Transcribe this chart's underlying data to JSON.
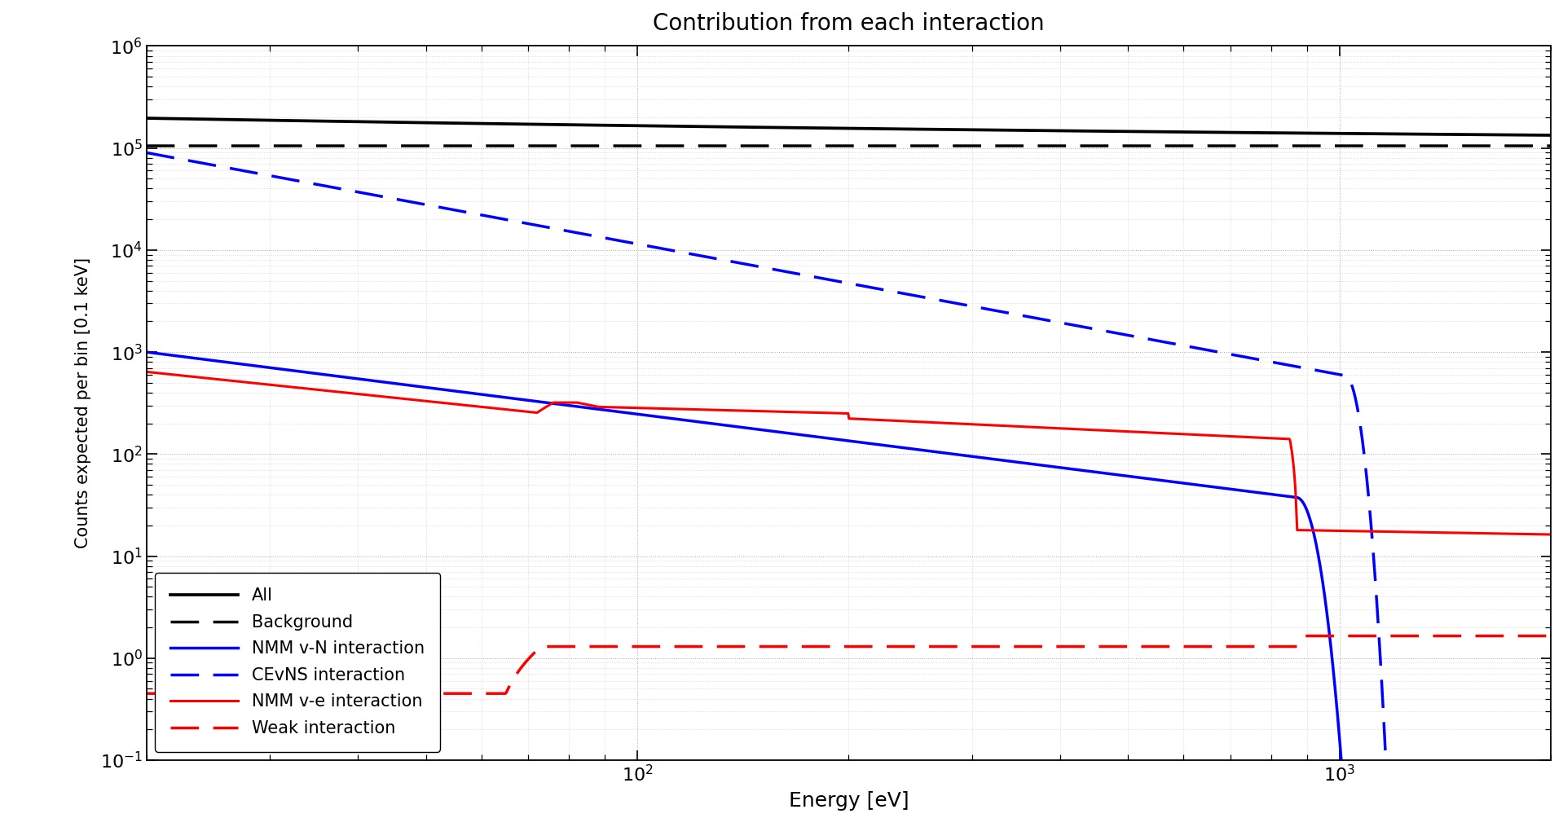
{
  "title": "Contribution from each interaction",
  "xlabel": "Energy [eV]",
  "ylabel": "Counts expected per bin [0.1 keV]",
  "xlim": [
    20,
    2000
  ],
  "ylim": [
    0.1,
    1000000
  ],
  "background_color": "#ffffff",
  "legend_labels": [
    "All",
    "Background",
    "NMM v-N interaction",
    "CEvNS interaction",
    "NMM v-e interaction",
    "Weak interaction"
  ]
}
